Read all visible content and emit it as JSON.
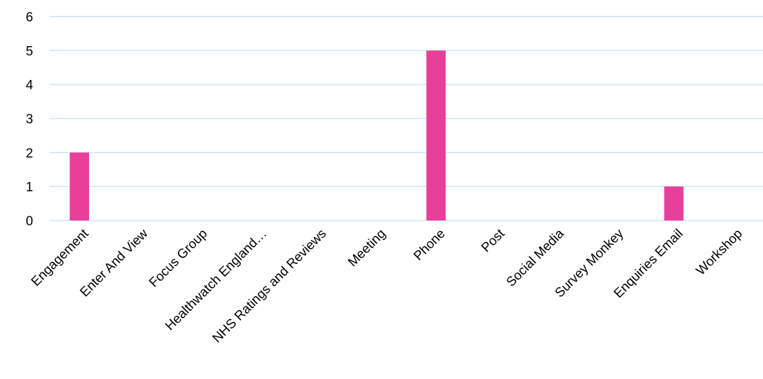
{
  "chart_data": {
    "type": "bar",
    "categories": [
      "Engagement",
      "Enter And View",
      "Focus Group",
      "Healthwatch England…",
      "NHS Ratings and Reviews",
      "Meeting",
      "Phone",
      "Post",
      "Social Media",
      "Survey Monkey",
      "Enquiries Email",
      "Workshop"
    ],
    "values": [
      2,
      0,
      0,
      0,
      0,
      0,
      5,
      0,
      0,
      0,
      1,
      0
    ],
    "y_ticks": [
      "0",
      "1",
      "2",
      "3",
      "4",
      "5",
      "6"
    ],
    "ylim": [
      0,
      6
    ],
    "grid": true,
    "legend": "none",
    "colors": {
      "bar": "#e8409a",
      "grid": "#c9e6f5"
    }
  }
}
